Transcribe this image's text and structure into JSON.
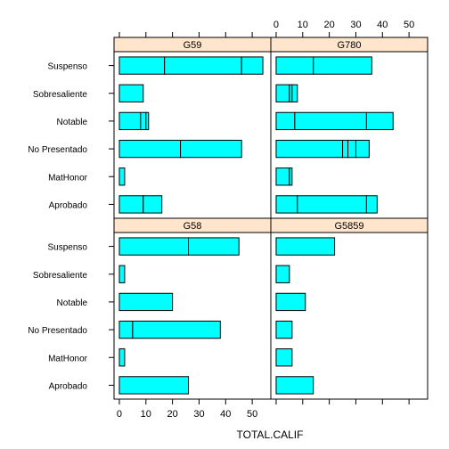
{
  "chart_data": {
    "type": "bar",
    "orientation": "horizontal",
    "stacked": true,
    "xlabel": "TOTAL.CALIF",
    "ylabel": "",
    "xlim": [
      -2,
      57
    ],
    "x_ticks": [
      0,
      10,
      20,
      30,
      40,
      50
    ],
    "x_tick_labels": [
      "0",
      "10",
      "20",
      "30",
      "40",
      "50"
    ],
    "categories": [
      "Suspenso",
      "Sobresaliente",
      "Notable",
      "No Presentado",
      "MatHonor",
      "Aprobado"
    ],
    "panels": [
      {
        "name": "G59",
        "segments": {
          "Suspenso": [
            17,
            29,
            8
          ],
          "Sobresaliente": [
            9
          ],
          "Notable": [
            8,
            2,
            1
          ],
          "No Presentado": [
            23,
            23
          ],
          "MatHonor": [
            2
          ],
          "Aprobado": [
            9,
            7
          ]
        }
      },
      {
        "name": "G780",
        "segments": {
          "Suspenso": [
            14,
            22
          ],
          "Sobresaliente": [
            5,
            1,
            2
          ],
          "Notable": [
            7,
            27,
            10
          ],
          "No Presentado": [
            25,
            2,
            3,
            5
          ],
          "MatHonor": [
            5,
            1
          ],
          "Aprobado": [
            8,
            26,
            4
          ]
        }
      },
      {
        "name": "G58",
        "segments": {
          "Suspenso": [
            26,
            19
          ],
          "Sobresaliente": [
            2
          ],
          "Notable": [
            20
          ],
          "No Presentado": [
            5,
            33
          ],
          "MatHonor": [
            2
          ],
          "Aprobado": [
            26
          ]
        }
      },
      {
        "name": "G5859",
        "segments": {
          "Suspenso": [
            22
          ],
          "Sobresaliente": [
            5
          ],
          "Notable": [
            11
          ],
          "No Presentado": [
            6
          ],
          "MatHonor": [
            6
          ],
          "Aprobado": [
            14
          ]
        }
      }
    ],
    "colors": {
      "bar_fill": "#00ffff",
      "bar_stroke": "#000000",
      "strip_fill": "#ffe5cc",
      "frame": "#000000",
      "text": "#000000"
    },
    "grid": false,
    "legend": "none"
  }
}
